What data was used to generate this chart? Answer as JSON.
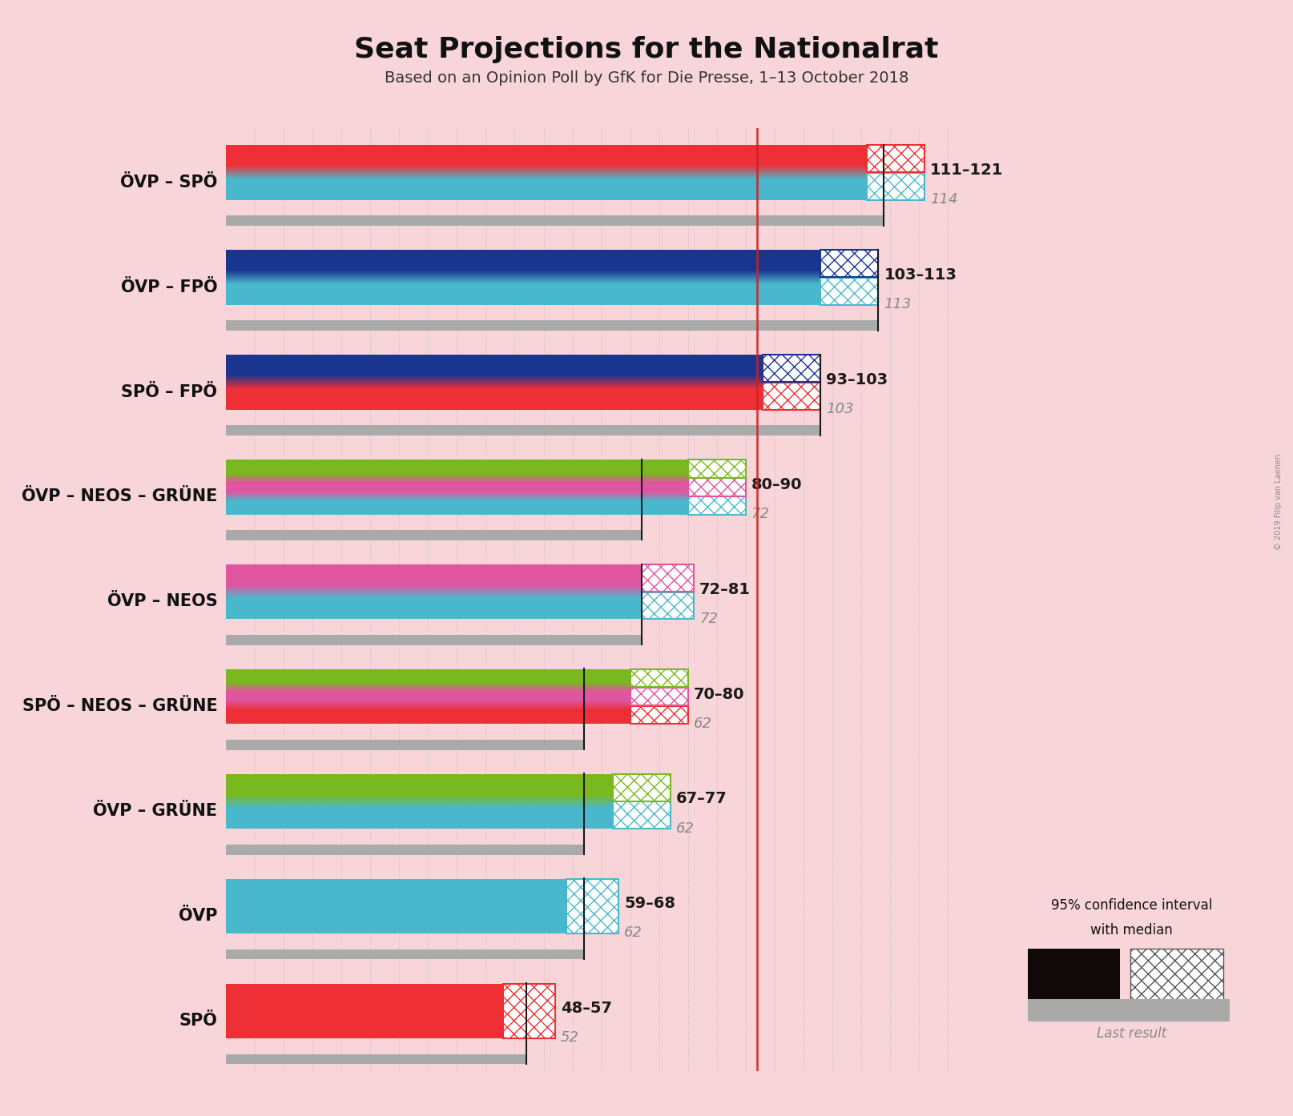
{
  "title": "Seat Projections for the Nationalrat",
  "subtitle": "Based on an Opinion Poll by GfK for Die Presse, 1–13 October 2018",
  "background_color": "#f7d5d8",
  "coalitions": [
    {
      "name": "ÖVP – SPÖ",
      "parties": [
        "ÖVP",
        "SPÖ"
      ],
      "colors": [
        "#4ab8cc",
        "#ee2f35"
      ],
      "ci_low": 111,
      "ci_high": 121,
      "median": 114,
      "last_result": 114,
      "label": "111–121",
      "sublabel": "114"
    },
    {
      "name": "ÖVP – FPÖ",
      "parties": [
        "ÖVP",
        "FPÖ"
      ],
      "colors": [
        "#4ab8cc",
        "#1a3590"
      ],
      "ci_low": 103,
      "ci_high": 113,
      "median": 113,
      "last_result": 113,
      "label": "103–113",
      "sublabel": "113"
    },
    {
      "name": "SPÖ – FPÖ",
      "parties": [
        "SPÖ",
        "FPÖ"
      ],
      "colors": [
        "#ee2f35",
        "#1a3590"
      ],
      "ci_low": 93,
      "ci_high": 103,
      "median": 103,
      "last_result": 103,
      "label": "93–103",
      "sublabel": "103"
    },
    {
      "name": "ÖVP – NEOS – GRÜNE",
      "parties": [
        "ÖVP",
        "NEOS",
        "GRÜNE"
      ],
      "colors": [
        "#4ab8cc",
        "#e055a0",
        "#7ab820"
      ],
      "ci_low": 80,
      "ci_high": 90,
      "median": 72,
      "last_result": 72,
      "label": "80–90",
      "sublabel": "72"
    },
    {
      "name": "ÖVP – NEOS",
      "parties": [
        "ÖVP",
        "NEOS"
      ],
      "colors": [
        "#4ab8cc",
        "#e055a0"
      ],
      "ci_low": 72,
      "ci_high": 81,
      "median": 72,
      "last_result": 72,
      "label": "72–81",
      "sublabel": "72"
    },
    {
      "name": "SPÖ – NEOS – GRÜNE",
      "parties": [
        "SPÖ",
        "NEOS",
        "GRÜNE"
      ],
      "colors": [
        "#ee2f35",
        "#e055a0",
        "#7ab820"
      ],
      "ci_low": 70,
      "ci_high": 80,
      "median": 62,
      "last_result": 62,
      "label": "70–80",
      "sublabel": "62"
    },
    {
      "name": "ÖVP – GRÜNE",
      "parties": [
        "ÖVP",
        "GRÜNE"
      ],
      "colors": [
        "#4ab8cc",
        "#7ab820"
      ],
      "ci_low": 67,
      "ci_high": 77,
      "median": 62,
      "last_result": 62,
      "label": "67–77",
      "sublabel": "62"
    },
    {
      "name": "ÖVP",
      "parties": [
        "ÖVP"
      ],
      "colors": [
        "#4ab8cc"
      ],
      "ci_low": 59,
      "ci_high": 68,
      "median": 62,
      "last_result": 62,
      "label": "59–68",
      "sublabel": "62"
    },
    {
      "name": "SPÖ",
      "parties": [
        "SPÖ"
      ],
      "colors": [
        "#ee2f35"
      ],
      "ci_low": 48,
      "ci_high": 57,
      "median": 52,
      "last_result": 52,
      "label": "48–57",
      "sublabel": "52"
    }
  ],
  "xmax": 130,
  "majority_line": 92,
  "watermark": "© 2019 Filip van Laenen"
}
